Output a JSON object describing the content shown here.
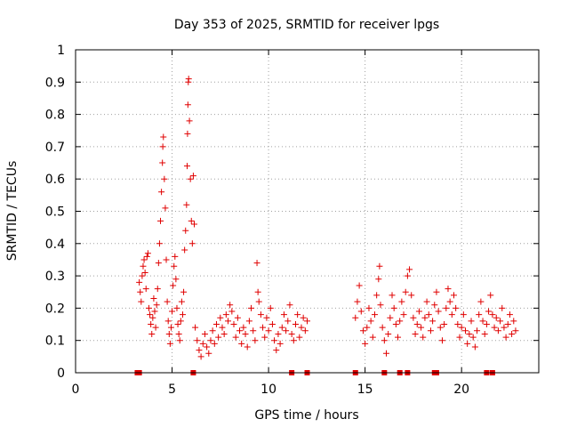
{
  "chart_data": {
    "type": "scatter",
    "title": "Day 353 of 2025, SRMTID for receiver lpgs",
    "xlabel": "GPS time / hours",
    "ylabel": "SRMTID / TECUs",
    "xlim": [
      0,
      24
    ],
    "ylim": [
      0,
      1
    ],
    "xticks": [
      0,
      5,
      10,
      15,
      20
    ],
    "xtick_labels": [
      "0",
      "5",
      "10",
      "15",
      "20"
    ],
    "yticks": [
      0,
      0.1,
      0.2,
      0.3,
      0.4,
      0.5,
      0.6,
      0.7,
      0.8,
      0.9,
      1
    ],
    "ytick_labels": [
      "0",
      "0.1",
      "0.2",
      "0.3",
      "0.4",
      "0.5",
      "0.6",
      "0.7",
      "0.8",
      "0.9",
      "1"
    ],
    "grid": true,
    "marker": "+",
    "color": "#e00000",
    "series": [
      {
        "name": "SRMTID",
        "points": [
          [
            3.3,
            0.28
          ],
          [
            3.35,
            0.25
          ],
          [
            3.4,
            0.22
          ],
          [
            3.45,
            0.3
          ],
          [
            3.5,
            0.33
          ],
          [
            3.55,
            0.35
          ],
          [
            3.6,
            0.31
          ],
          [
            3.65,
            0.26
          ],
          [
            3.7,
            0.36
          ],
          [
            3.75,
            0.37
          ],
          [
            3.8,
            0.2
          ],
          [
            3.85,
            0.18
          ],
          [
            3.9,
            0.15
          ],
          [
            3.95,
            0.12
          ],
          [
            4.0,
            0.17
          ],
          [
            4.05,
            0.23
          ],
          [
            4.1,
            0.19
          ],
          [
            4.15,
            0.14
          ],
          [
            4.2,
            0.21
          ],
          [
            4.25,
            0.26
          ],
          [
            4.3,
            0.34
          ],
          [
            4.35,
            0.4
          ],
          [
            4.4,
            0.47
          ],
          [
            4.45,
            0.56
          ],
          [
            4.5,
            0.65
          ],
          [
            4.52,
            0.7
          ],
          [
            4.55,
            0.73
          ],
          [
            4.6,
            0.6
          ],
          [
            4.65,
            0.51
          ],
          [
            4.7,
            0.35
          ],
          [
            4.75,
            0.22
          ],
          [
            4.8,
            0.16
          ],
          [
            4.85,
            0.12
          ],
          [
            4.9,
            0.09
          ],
          [
            4.95,
            0.14
          ],
          [
            5.0,
            0.19
          ],
          [
            5.05,
            0.27
          ],
          [
            5.1,
            0.33
          ],
          [
            5.15,
            0.36
          ],
          [
            5.2,
            0.29
          ],
          [
            5.25,
            0.2
          ],
          [
            5.3,
            0.15
          ],
          [
            5.35,
            0.12
          ],
          [
            5.4,
            0.1
          ],
          [
            5.45,
            0.16
          ],
          [
            5.5,
            0.22
          ],
          [
            5.55,
            0.18
          ],
          [
            5.6,
            0.25
          ],
          [
            5.65,
            0.38
          ],
          [
            5.7,
            0.44
          ],
          [
            5.75,
            0.52
          ],
          [
            5.78,
            0.64
          ],
          [
            5.8,
            0.74
          ],
          [
            5.82,
            0.83
          ],
          [
            5.84,
            0.9
          ],
          [
            5.86,
            0.91
          ],
          [
            5.9,
            0.78
          ],
          [
            5.95,
            0.6
          ],
          [
            6.0,
            0.47
          ],
          [
            6.05,
            0.4
          ],
          [
            6.1,
            0.61
          ],
          [
            6.15,
            0.46
          ],
          [
            6.2,
            0.14
          ],
          [
            6.3,
            0.1
          ],
          [
            6.4,
            0.07
          ],
          [
            6.5,
            0.05
          ],
          [
            6.6,
            0.09
          ],
          [
            6.7,
            0.12
          ],
          [
            6.8,
            0.08
          ],
          [
            6.9,
            0.06
          ],
          [
            7.0,
            0.1
          ],
          [
            7.1,
            0.13
          ],
          [
            7.2,
            0.09
          ],
          [
            7.3,
            0.15
          ],
          [
            7.4,
            0.11
          ],
          [
            7.5,
            0.17
          ],
          [
            7.6,
            0.14
          ],
          [
            7.7,
            0.12
          ],
          [
            7.8,
            0.18
          ],
          [
            7.9,
            0.16
          ],
          [
            8.0,
            0.21
          ],
          [
            8.1,
            0.19
          ],
          [
            8.2,
            0.15
          ],
          [
            8.3,
            0.11
          ],
          [
            8.4,
            0.17
          ],
          [
            8.5,
            0.13
          ],
          [
            8.6,
            0.09
          ],
          [
            8.7,
            0.14
          ],
          [
            8.8,
            0.12
          ],
          [
            8.9,
            0.08
          ],
          [
            9.0,
            0.16
          ],
          [
            9.1,
            0.2
          ],
          [
            9.2,
            0.13
          ],
          [
            9.3,
            0.1
          ],
          [
            9.4,
            0.34
          ],
          [
            9.45,
            0.25
          ],
          [
            9.5,
            0.22
          ],
          [
            9.6,
            0.18
          ],
          [
            9.7,
            0.14
          ],
          [
            9.8,
            0.11
          ],
          [
            9.9,
            0.17
          ],
          [
            10.0,
            0.13
          ],
          [
            10.1,
            0.2
          ],
          [
            10.2,
            0.15
          ],
          [
            10.3,
            0.1
          ],
          [
            10.4,
            0.07
          ],
          [
            10.5,
            0.12
          ],
          [
            10.6,
            0.09
          ],
          [
            10.7,
            0.14
          ],
          [
            10.8,
            0.18
          ],
          [
            10.9,
            0.13
          ],
          [
            11.0,
            0.16
          ],
          [
            11.1,
            0.21
          ],
          [
            11.2,
            0.12
          ],
          [
            11.3,
            0.1
          ],
          [
            11.4,
            0.15
          ],
          [
            11.5,
            0.18
          ],
          [
            11.6,
            0.11
          ],
          [
            11.7,
            0.14
          ],
          [
            11.8,
            0.17
          ],
          [
            11.9,
            0.13
          ],
          [
            12.0,
            0.16
          ],
          [
            14.5,
            0.17
          ],
          [
            14.6,
            0.22
          ],
          [
            14.7,
            0.27
          ],
          [
            14.8,
            0.19
          ],
          [
            14.9,
            0.13
          ],
          [
            15.0,
            0.09
          ],
          [
            15.1,
            0.14
          ],
          [
            15.2,
            0.2
          ],
          [
            15.3,
            0.16
          ],
          [
            15.4,
            0.11
          ],
          [
            15.5,
            0.18
          ],
          [
            15.6,
            0.24
          ],
          [
            15.7,
            0.29
          ],
          [
            15.75,
            0.33
          ],
          [
            15.8,
            0.21
          ],
          [
            15.9,
            0.14
          ],
          [
            16.0,
            0.1
          ],
          [
            16.1,
            0.06
          ],
          [
            16.2,
            0.12
          ],
          [
            16.3,
            0.17
          ],
          [
            16.4,
            0.24
          ],
          [
            16.5,
            0.2
          ],
          [
            16.6,
            0.15
          ],
          [
            16.7,
            0.11
          ],
          [
            16.8,
            0.16
          ],
          [
            16.9,
            0.22
          ],
          [
            17.0,
            0.18
          ],
          [
            17.1,
            0.25
          ],
          [
            17.2,
            0.3
          ],
          [
            17.3,
            0.32
          ],
          [
            17.4,
            0.24
          ],
          [
            17.5,
            0.17
          ],
          [
            17.6,
            0.12
          ],
          [
            17.7,
            0.15
          ],
          [
            17.8,
            0.19
          ],
          [
            17.9,
            0.14
          ],
          [
            18.0,
            0.11
          ],
          [
            18.1,
            0.17
          ],
          [
            18.2,
            0.22
          ],
          [
            18.3,
            0.18
          ],
          [
            18.4,
            0.13
          ],
          [
            18.5,
            0.16
          ],
          [
            18.6,
            0.21
          ],
          [
            18.7,
            0.25
          ],
          [
            18.8,
            0.19
          ],
          [
            18.9,
            0.14
          ],
          [
            19.0,
            0.1
          ],
          [
            19.1,
            0.15
          ],
          [
            19.2,
            0.2
          ],
          [
            19.3,
            0.26
          ],
          [
            19.4,
            0.22
          ],
          [
            19.5,
            0.18
          ],
          [
            19.6,
            0.24
          ],
          [
            19.7,
            0.2
          ],
          [
            19.8,
            0.15
          ],
          [
            19.9,
            0.11
          ],
          [
            20.0,
            0.14
          ],
          [
            20.1,
            0.18
          ],
          [
            20.2,
            0.13
          ],
          [
            20.3,
            0.09
          ],
          [
            20.4,
            0.12
          ],
          [
            20.5,
            0.16
          ],
          [
            20.6,
            0.11
          ],
          [
            20.7,
            0.08
          ],
          [
            20.8,
            0.13
          ],
          [
            20.9,
            0.18
          ],
          [
            21.0,
            0.22
          ],
          [
            21.1,
            0.16
          ],
          [
            21.2,
            0.12
          ],
          [
            21.3,
            0.15
          ],
          [
            21.4,
            0.19
          ],
          [
            21.5,
            0.24
          ],
          [
            21.6,
            0.18
          ],
          [
            21.7,
            0.14
          ],
          [
            21.8,
            0.17
          ],
          [
            21.9,
            0.13
          ],
          [
            22.0,
            0.16
          ],
          [
            22.1,
            0.2
          ],
          [
            22.2,
            0.14
          ],
          [
            22.3,
            0.11
          ],
          [
            22.4,
            0.15
          ],
          [
            22.5,
            0.18
          ],
          [
            22.6,
            0.12
          ],
          [
            22.7,
            0.16
          ],
          [
            22.8,
            0.13
          ]
        ]
      }
    ],
    "baseline_markers_x": [
      3.2,
      3.3,
      6.1,
      11.2,
      12.0,
      14.5,
      16.0,
      16.8,
      17.2,
      18.6,
      18.7,
      21.3,
      21.6
    ]
  }
}
